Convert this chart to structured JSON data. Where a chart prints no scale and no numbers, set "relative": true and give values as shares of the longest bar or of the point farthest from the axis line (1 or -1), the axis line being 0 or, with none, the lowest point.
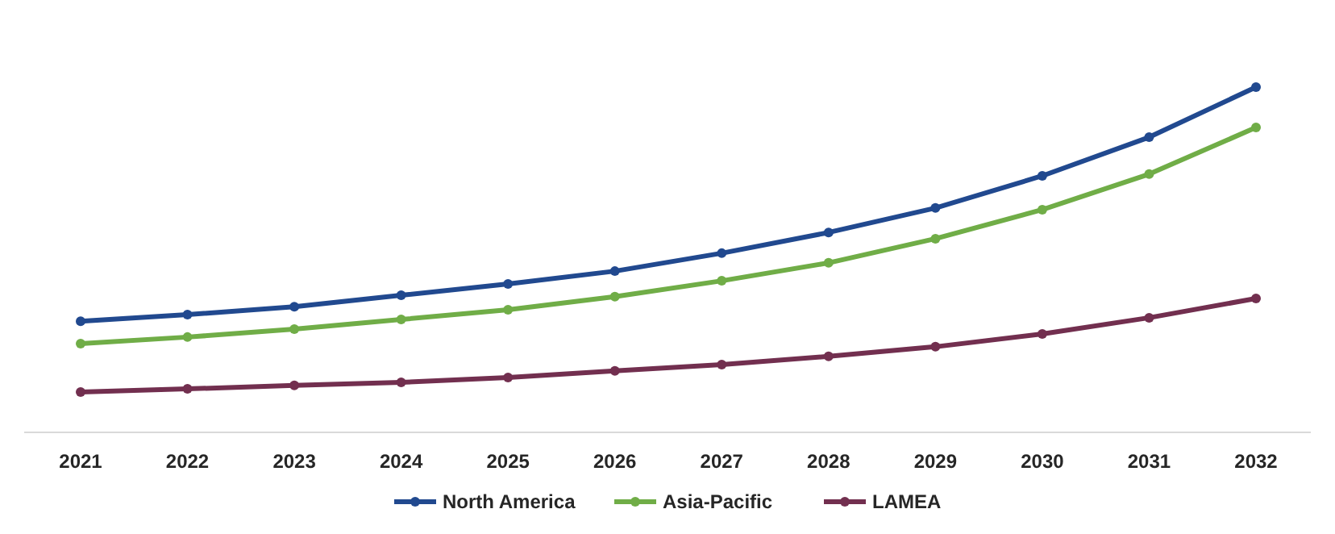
{
  "chart_data": {
    "type": "line",
    "relative": true,
    "categories": [
      "2021",
      "2022",
      "2023",
      "2024",
      "2025",
      "2026",
      "2027",
      "2028",
      "2029",
      "2030",
      "2031",
      "2032"
    ],
    "series": [
      {
        "name": "North America",
        "color": "#21498f",
        "values": [
          0.322,
          0.341,
          0.364,
          0.397,
          0.43,
          0.467,
          0.519,
          0.579,
          0.65,
          0.743,
          0.855,
          1
        ]
      },
      {
        "name": "Asia-Pacific",
        "color": "#70ad47",
        "values": [
          0.257,
          0.276,
          0.299,
          0.327,
          0.355,
          0.393,
          0.439,
          0.491,
          0.561,
          0.645,
          0.748,
          0.883
        ]
      },
      {
        "name": "LAMEA",
        "color": "#722f4f",
        "values": [
          0.117,
          0.126,
          0.136,
          0.145,
          0.159,
          0.178,
          0.196,
          0.22,
          0.248,
          0.285,
          0.332,
          0.388
        ]
      }
    ],
    "legend": "bottom",
    "marker": "circle",
    "line_style": "solid"
  }
}
